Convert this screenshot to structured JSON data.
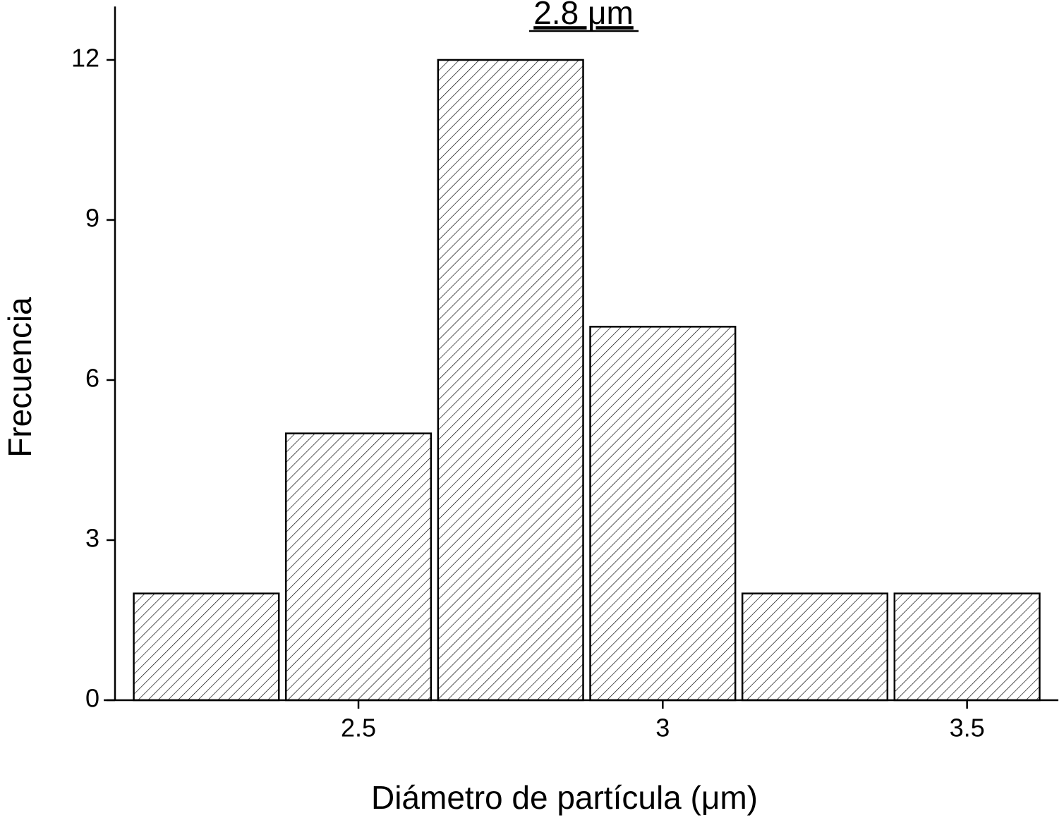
{
  "chart_data": {
    "type": "histogram",
    "annotation": "2.8 μm",
    "xlabel": "Diámetro de partícula (μm)",
    "ylabel": "Frecuencia",
    "bins": [
      2.125,
      2.375,
      2.625,
      2.875,
      3.125,
      3.375,
      3.625
    ],
    "values": [
      2,
      5,
      12,
      7,
      2,
      2
    ],
    "color": "#000000",
    "xlim": [
      2.1,
      3.65
    ],
    "ylim": [
      0,
      13
    ],
    "xticks": [
      2.5,
      3,
      3.5
    ],
    "yticks": [
      0,
      3,
      6,
      9,
      12
    ],
    "grid": false
  }
}
